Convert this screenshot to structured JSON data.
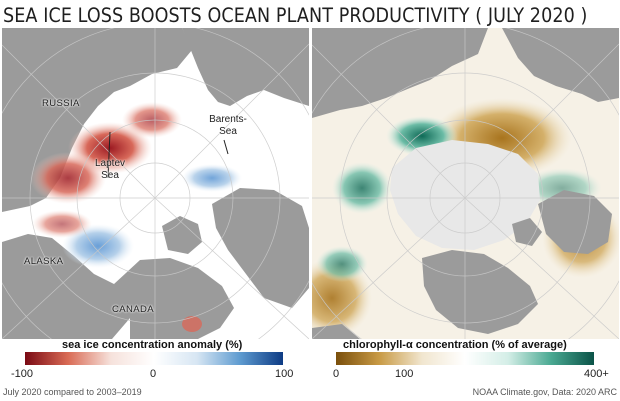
{
  "title": "SEA ICE LOSS BOOSTS OCEAN PLANT PRODUCTIVITY ( JULY 2020 )",
  "left_map": {
    "labels": {
      "russia": "RUSSIA",
      "barents": "Barents-\nSea",
      "laptev": "Laptev\nSea",
      "alaska": "ALASKA",
      "canada": "CANADA"
    },
    "colorbar": {
      "title": "sea ice concentration anomaly (%)",
      "ticks": [
        "-100",
        "0",
        "100"
      ],
      "colors": [
        "#7a0a14",
        "#d96b55",
        "#f6e2dc",
        "#ffffff",
        "#d7e6f3",
        "#5e9bd0",
        "#0d3b84"
      ]
    }
  },
  "right_map": {
    "colorbar": {
      "title": "chlorophyll-α concentration (% of average)",
      "ticks": [
        "0",
        "100",
        "400+"
      ],
      "colors": [
        "#7a4f0c",
        "#c89a45",
        "#f1e6cf",
        "#ffffff",
        "#d4eee7",
        "#4aa992",
        "#0b5348"
      ]
    }
  },
  "footer_left": "July 2020 compared to 2003–2019",
  "footer_right": "NOAA Climate.gov, Data: 2020 ARC",
  "colors": {
    "land": "#9b9b9b",
    "ocean_left": "#ffffff",
    "ice_right": "#e8e8e8"
  }
}
